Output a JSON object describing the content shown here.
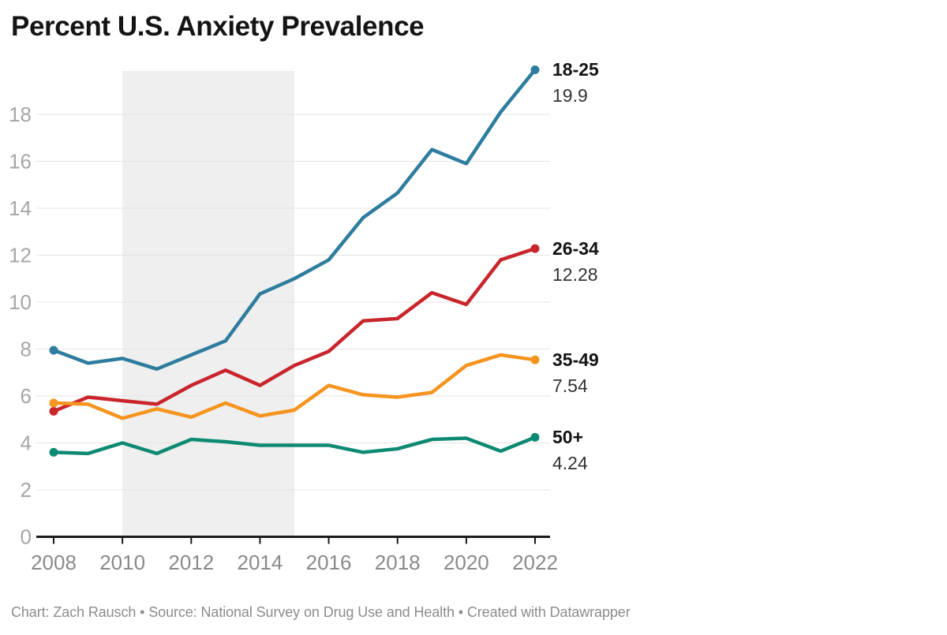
{
  "header": {
    "title": "Percent U.S. Anxiety Prevalence"
  },
  "footer": {
    "credit": "Chart: Zach Rausch • Source: National Survey on Drug Use and Health • Created with Datawrapper"
  },
  "chart_data": {
    "type": "line",
    "title": "Percent U.S. Anxiety Prevalence",
    "xlabel": "",
    "ylabel": "",
    "x": [
      2008,
      2009,
      2010,
      2011,
      2012,
      2013,
      2014,
      2015,
      2016,
      2017,
      2018,
      2019,
      2020,
      2021,
      2022
    ],
    "series": [
      {
        "name": "18-25",
        "color": "#2e7d9e",
        "end_label": "19.9",
        "values": [
          7.95,
          7.4,
          7.6,
          7.15,
          7.75,
          8.35,
          10.35,
          11.0,
          11.8,
          13.6,
          14.65,
          16.5,
          15.9,
          18.1,
          19.9
        ]
      },
      {
        "name": "26-34",
        "color": "#c9252c",
        "end_label": "12.28",
        "values": [
          5.35,
          5.95,
          5.8,
          5.65,
          6.45,
          7.1,
          6.45,
          7.3,
          7.9,
          9.2,
          9.3,
          10.4,
          9.9,
          11.8,
          12.28
        ]
      },
      {
        "name": "35-49",
        "color": "#f5941f",
        "end_label": "7.54",
        "values": [
          5.7,
          5.65,
          5.05,
          5.45,
          5.1,
          5.7,
          5.15,
          5.4,
          6.45,
          6.05,
          5.95,
          6.15,
          7.3,
          7.75,
          7.54
        ]
      },
      {
        "name": "50+",
        "color": "#0e8a72",
        "end_label": "4.24",
        "values": [
          3.6,
          3.55,
          4.0,
          3.55,
          4.15,
          4.05,
          3.9,
          3.9,
          3.9,
          3.6,
          3.75,
          4.15,
          4.2,
          3.65,
          4.24
        ]
      }
    ],
    "ylim": [
      0,
      20
    ],
    "y_ticks": [
      0,
      2,
      4,
      6,
      8,
      10,
      12,
      14,
      16,
      18
    ],
    "x_ticks": [
      2008,
      2010,
      2012,
      2014,
      2016,
      2018,
      2020,
      2022
    ],
    "shaded_region": {
      "from": 2010,
      "to": 2015,
      "color": "#efefef"
    },
    "grid": "horizontal gridlines on",
    "legend_position": "direct labels at right end of lines",
    "axis_colors": {
      "tick_label": "#a6a6a6",
      "x_label": "#8a8a8a",
      "axis_line": "#1a1a1a",
      "gridline": "#e3e3e3"
    }
  }
}
